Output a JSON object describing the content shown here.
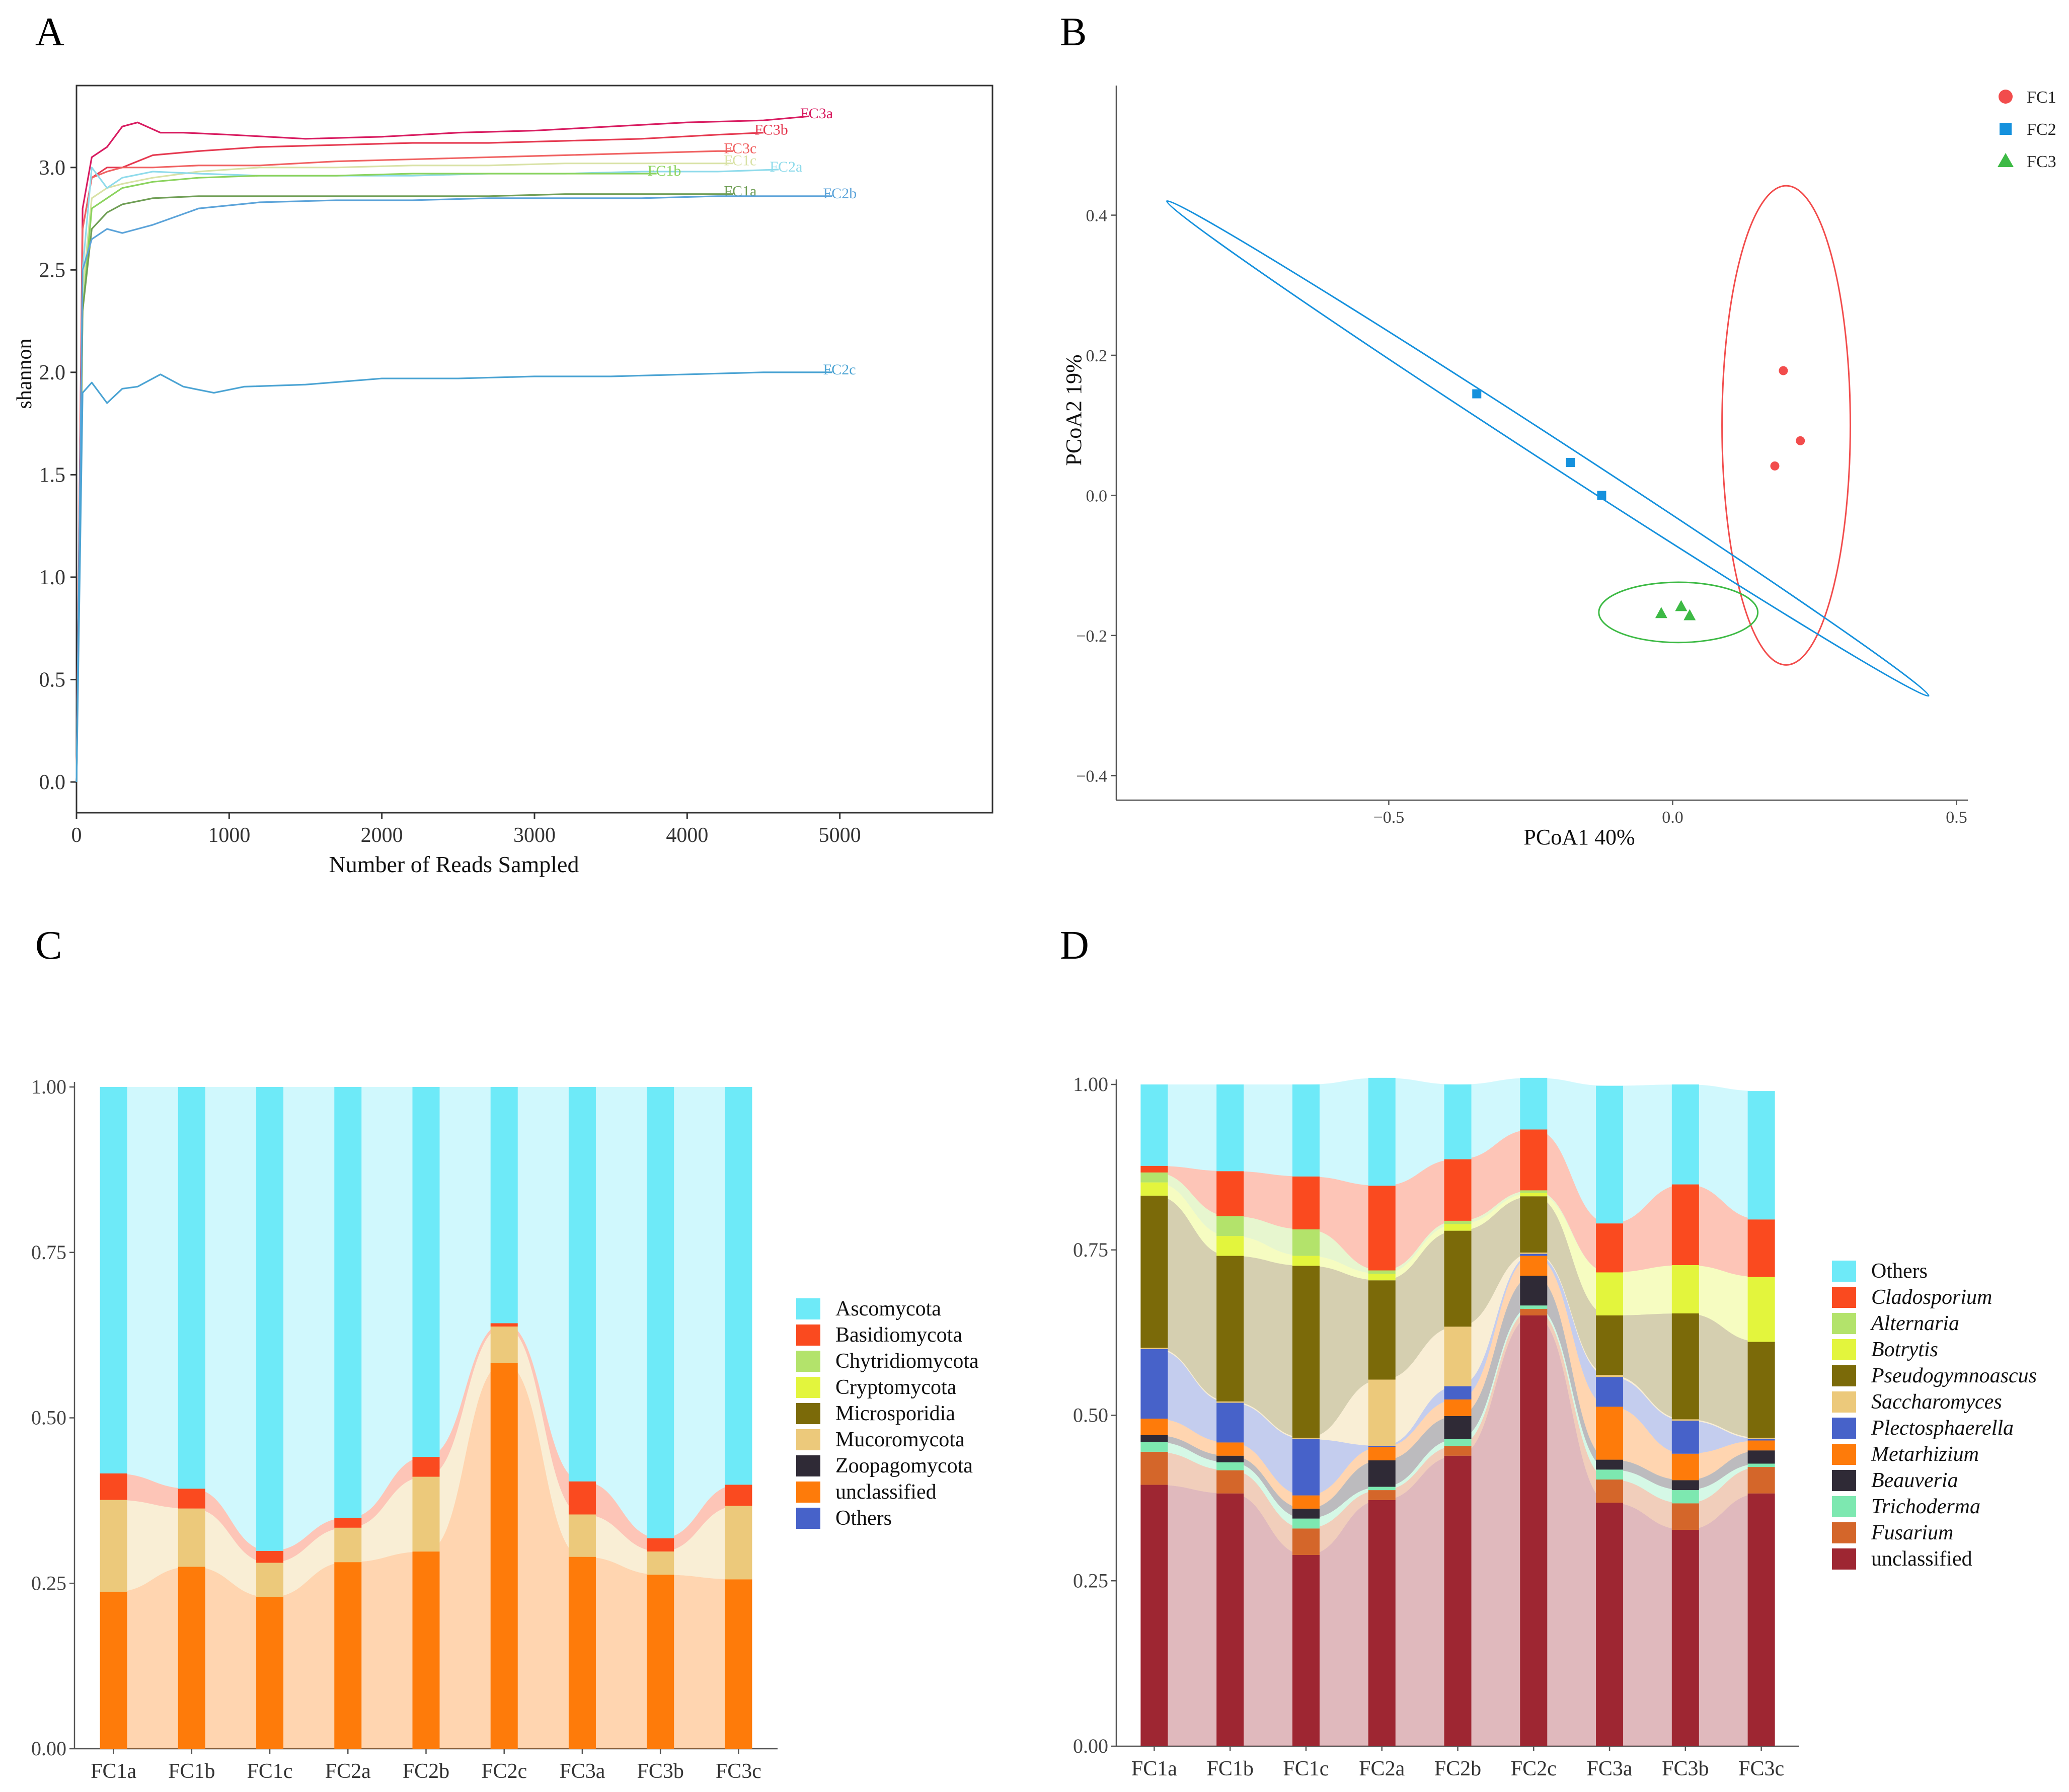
{
  "panel_letters": {
    "a": "A",
    "b": "B",
    "c": "C",
    "d": "D"
  },
  "chart_data": [
    {
      "panel": "A",
      "type": "line",
      "title": "",
      "xlabel": "Number  of  Reads  Sampled",
      "ylabel": "shannon",
      "xlim": [
        0,
        6000
      ],
      "ylim": [
        -0.15,
        3.4
      ],
      "xticks": [
        0,
        1000,
        2000,
        3000,
        4000,
        5000
      ],
      "xtick_labels": [
        "0",
        "1000",
        "2000",
        "3000",
        "4000",
        "5000"
      ],
      "yticks": [
        0.0,
        0.5,
        1.0,
        1.5,
        2.0,
        2.5,
        3.0
      ],
      "ytick_labels": [
        "0.0",
        "0.5",
        "1.0",
        "1.5",
        "2.0",
        "2.5",
        "3.0"
      ],
      "series": [
        {
          "name": "FC3a",
          "color": "#d81b60",
          "x": [
            0,
            40,
            100,
            200,
            300,
            400,
            550,
            700,
            1000,
            1500,
            2000,
            2500,
            3000,
            3500,
            4000,
            4500,
            4800
          ],
          "y": [
            0,
            2.8,
            3.05,
            3.1,
            3.2,
            3.22,
            3.17,
            3.17,
            3.16,
            3.14,
            3.15,
            3.17,
            3.18,
            3.2,
            3.22,
            3.23,
            3.25
          ]
        },
        {
          "name": "FC3b",
          "color": "#e53950",
          "x": [
            0,
            40,
            100,
            200,
            300,
            500,
            800,
            1200,
            1700,
            2200,
            2700,
            3200,
            3700,
            4200,
            4500
          ],
          "y": [
            0,
            2.7,
            2.95,
            3.0,
            3.0,
            3.06,
            3.08,
            3.1,
            3.11,
            3.12,
            3.12,
            3.13,
            3.14,
            3.16,
            3.17
          ]
        },
        {
          "name": "FC3c",
          "color": "#f06161",
          "x": [
            0,
            40,
            100,
            200,
            300,
            500,
            800,
            1200,
            1700,
            2200,
            2700,
            3200,
            3700,
            4200,
            4300
          ],
          "y": [
            0,
            2.7,
            2.95,
            2.98,
            3.0,
            3.0,
            3.01,
            3.01,
            3.03,
            3.04,
            3.05,
            3.06,
            3.07,
            3.08,
            3.08
          ]
        },
        {
          "name": "FC1c",
          "color": "#d9e2a6",
          "x": [
            0,
            40,
            100,
            200,
            300,
            500,
            800,
            1200,
            1700,
            2200,
            2700,
            3200,
            3700,
            4200,
            4300
          ],
          "y": [
            0,
            2.4,
            2.85,
            2.9,
            2.92,
            2.95,
            2.98,
            3.0,
            3.0,
            3.01,
            3.01,
            3.02,
            3.02,
            3.02,
            3.02
          ]
        },
        {
          "name": "FC2a",
          "color": "#8fdbeb",
          "x": [
            0,
            40,
            100,
            200,
            300,
            500,
            800,
            1200,
            1700,
            2200,
            2700,
            3200,
            3700,
            4200,
            4600
          ],
          "y": [
            0,
            2.5,
            3.0,
            2.9,
            2.95,
            2.98,
            2.97,
            2.96,
            2.96,
            2.96,
            2.97,
            2.97,
            2.98,
            2.98,
            2.99
          ]
        },
        {
          "name": "FC1b",
          "color": "#8bd35e",
          "x": [
            0,
            40,
            100,
            200,
            300,
            500,
            800,
            1200,
            1700,
            2200,
            2700,
            3200,
            3700,
            3800
          ],
          "y": [
            0,
            2.3,
            2.8,
            2.85,
            2.9,
            2.93,
            2.95,
            2.96,
            2.96,
            2.97,
            2.97,
            2.97,
            2.97,
            2.97
          ]
        },
        {
          "name": "FC1a",
          "color": "#6f9e55",
          "x": [
            0,
            40,
            100,
            200,
            300,
            500,
            800,
            1200,
            1700,
            2200,
            2700,
            3200,
            3700,
            4200,
            4300
          ],
          "y": [
            0,
            2.3,
            2.7,
            2.78,
            2.82,
            2.85,
            2.86,
            2.86,
            2.86,
            2.86,
            2.86,
            2.87,
            2.87,
            2.87,
            2.87
          ]
        },
        {
          "name": "FC2b",
          "color": "#5ba3d9",
          "x": [
            0,
            40,
            100,
            200,
            300,
            500,
            800,
            1200,
            1700,
            2200,
            2700,
            3200,
            3700,
            4200,
            4700,
            4950
          ],
          "y": [
            0,
            2.5,
            2.65,
            2.7,
            2.68,
            2.72,
            2.8,
            2.83,
            2.84,
            2.84,
            2.85,
            2.85,
            2.85,
            2.86,
            2.86,
            2.86
          ]
        },
        {
          "name": "FC2c",
          "color": "#4aa3d3",
          "x": [
            0,
            40,
            100,
            200,
            300,
            400,
            550,
            700,
            900,
            1100,
            1500,
            2000,
            2500,
            3000,
            3500,
            4000,
            4500,
            4950
          ],
          "y": [
            0,
            1.9,
            1.95,
            1.85,
            1.92,
            1.93,
            1.99,
            1.93,
            1.9,
            1.93,
            1.94,
            1.97,
            1.97,
            1.98,
            1.98,
            1.99,
            2.0,
            2.0
          ]
        }
      ]
    },
    {
      "panel": "B",
      "type": "scatter",
      "title": "",
      "xlabel": "PCoA1  40%",
      "ylabel": "PCoA2  19%",
      "xlim": [
        -0.98,
        0.52
      ],
      "ylim": [
        -0.435,
        0.585
      ],
      "xticks": [
        -0.5,
        0.0,
        0.5
      ],
      "xtick_labels": [
        "−0.5",
        "0.0",
        "0.5"
      ],
      "yticks": [
        -0.4,
        -0.2,
        0.0,
        0.2,
        0.4
      ],
      "ytick_labels": [
        "−0.4",
        "−0.2",
        "0.0",
        "0.2",
        "0.4"
      ],
      "legend": {
        "position": "top-right",
        "entries": [
          "FC1",
          "FC2",
          "FC3"
        ]
      },
      "series": [
        {
          "name": "FC1",
          "color": "#f24c4c",
          "marker": "circle",
          "x": [
            0.195,
            0.225,
            0.18
          ],
          "y": [
            0.178,
            0.078,
            0.042
          ]
        },
        {
          "name": "FC2",
          "color": "#1591dd",
          "marker": "square",
          "x": [
            -0.345,
            -0.18,
            -0.125
          ],
          "y": [
            0.145,
            0.047,
            0.0
          ]
        },
        {
          "name": "FC3",
          "color": "#3dba45",
          "marker": "triangle",
          "x": [
            -0.02,
            0.015,
            0.03
          ],
          "y": [
            -0.168,
            -0.158,
            -0.171
          ]
        }
      ],
      "ellipses": [
        {
          "group": "FC1",
          "color": "#f24c4c",
          "cx": 0.2,
          "cy": 0.1,
          "rx": 0.113,
          "ry": 0.342,
          "angle_deg": 0
        },
        {
          "group": "FC2",
          "color": "#1591dd",
          "cx": -0.22,
          "cy": 0.067,
          "rx": 0.8,
          "ry": 0.018,
          "angle_deg": 33
        },
        {
          "group": "FC3",
          "color": "#3dba45",
          "cx": 0.01,
          "cy": -0.167,
          "rx": 0.14,
          "ry": 0.043,
          "angle_deg": 0
        }
      ]
    },
    {
      "panel": "C",
      "type": "bar",
      "stacked": true,
      "title": "",
      "xlabel": "",
      "ylabel": "",
      "ylim": [
        0,
        1
      ],
      "yticks": [
        0,
        0.25,
        0.5,
        0.75,
        1.0
      ],
      "ytick_labels": [
        "0.00",
        "0.25",
        "0.50",
        "0.75",
        "1.00"
      ],
      "categories": [
        "FC1a",
        "FC1b",
        "FC1c",
        "FC2a",
        "FC2b",
        "FC2c",
        "FC3a",
        "FC3b",
        "FC3c"
      ],
      "legend": {
        "position": "right"
      },
      "series": [
        {
          "name": "Ascomycota",
          "color": "#6eeaf8",
          "values": [
            0.584,
            0.607,
            0.701,
            0.651,
            0.559,
            0.357,
            0.596,
            0.682,
            0.601
          ]
        },
        {
          "name": "Basidiomycota",
          "color": "#fa4a1f",
          "values": [
            0.04,
            0.03,
            0.018,
            0.015,
            0.03,
            0.005,
            0.05,
            0.02,
            0.032
          ]
        },
        {
          "name": "Chytridiomycota",
          "color": "#b3e36b",
          "values": [
            0,
            0,
            0,
            0,
            0,
            0,
            0,
            0,
            0
          ]
        },
        {
          "name": "Cryptomycota",
          "color": "#e3f53d",
          "values": [
            0,
            0,
            0,
            0,
            0,
            0,
            0,
            0,
            0
          ]
        },
        {
          "name": "Microsporidia",
          "color": "#7b6a09",
          "values": [
            0,
            0,
            0,
            0,
            0,
            0,
            0,
            0,
            0
          ]
        },
        {
          "name": "Mucoromycota",
          "color": "#ecc97b",
          "values": [
            0.139,
            0.088,
            0.052,
            0.052,
            0.113,
            0.055,
            0.064,
            0.035,
            0.111
          ]
        },
        {
          "name": "Zoopagomycota",
          "color": "#2f2a36",
          "values": [
            0,
            0,
            0,
            0,
            0,
            0,
            0,
            0,
            0
          ]
        },
        {
          "name": "unclassified",
          "color": "#fe7b0a",
          "values": [
            0.237,
            0.275,
            0.229,
            0.282,
            0.298,
            0.583,
            0.29,
            0.263,
            0.256
          ]
        },
        {
          "name": "Others",
          "color": "#4762c9",
          "values": [
            0,
            0,
            0,
            0,
            0,
            0,
            0,
            0,
            0
          ]
        }
      ]
    },
    {
      "panel": "D",
      "type": "bar",
      "stacked": true,
      "title": "",
      "xlabel": "",
      "ylabel": "",
      "ylim": [
        0,
        1
      ],
      "yticks": [
        0,
        0.25,
        0.5,
        0.75,
        1.0
      ],
      "ytick_labels": [
        "0.00",
        "0.25",
        "0.50",
        "0.75",
        "1.00"
      ],
      "categories": [
        "FC1a",
        "FC1b",
        "FC1c",
        "FC2a",
        "FC2b",
        "FC2c",
        "FC3a",
        "FC3b",
        "FC3c"
      ],
      "legend": {
        "position": "right"
      },
      "series": [
        {
          "name": "Others",
          "italic": false,
          "color": "#6eeaf8",
          "values": [
            0.123,
            0.131,
            0.139,
            0.163,
            0.113,
            0.078,
            0.208,
            0.151,
            0.194
          ]
        },
        {
          "name": "Cladosporium",
          "italic": true,
          "color": "#fa4a1f",
          "values": [
            0.01,
            0.068,
            0.08,
            0.128,
            0.093,
            0.092,
            0.074,
            0.122,
            0.087
          ]
        },
        {
          "name": "Alternaria",
          "italic": true,
          "color": "#b3e36b",
          "values": [
            0.015,
            0.03,
            0.04,
            0.005,
            0.005,
            0.004,
            0,
            0,
            0
          ]
        },
        {
          "name": "Botrytis",
          "italic": true,
          "color": "#e3f53d",
          "values": [
            0.02,
            0.03,
            0.015,
            0.01,
            0.01,
            0.005,
            0.065,
            0.073,
            0.098
          ]
        },
        {
          "name": "Pseudogymnoascus",
          "italic": true,
          "color": "#7b6a09",
          "values": [
            0.23,
            0.22,
            0.26,
            0.15,
            0.145,
            0.085,
            0.09,
            0.16,
            0.145
          ]
        },
        {
          "name": "Saccharomyces",
          "italic": true,
          "color": "#ecc97b",
          "values": [
            0.002,
            0.002,
            0.002,
            0.1,
            0.09,
            0.002,
            0.003,
            0.002,
            0.002
          ]
        },
        {
          "name": "Plectosphaerella",
          "italic": true,
          "color": "#4762c9",
          "values": [
            0.105,
            0.06,
            0.085,
            0.002,
            0.02,
            0.003,
            0.045,
            0.05,
            0.002
          ]
        },
        {
          "name": "Metarhizium",
          "italic": true,
          "color": "#fe7b0a",
          "values": [
            0.025,
            0.02,
            0.02,
            0.02,
            0.025,
            0.03,
            0.08,
            0.04,
            0.015
          ]
        },
        {
          "name": "Beauveria",
          "italic": true,
          "color": "#2f2a36",
          "values": [
            0.01,
            0.01,
            0.015,
            0.04,
            0.035,
            0.045,
            0.015,
            0.015,
            0.02
          ]
        },
        {
          "name": "Trichoderma",
          "italic": true,
          "color": "#7de8b0",
          "values": [
            0.015,
            0.012,
            0.015,
            0.005,
            0.01,
            0.005,
            0.015,
            0.02,
            0.005
          ]
        },
        {
          "name": "Fusarium",
          "italic": true,
          "color": "#d4662a",
          "values": [
            0.05,
            0.035,
            0.04,
            0.015,
            0.015,
            0.01,
            0.035,
            0.04,
            0.04
          ]
        },
        {
          "name": "unclassified",
          "italic": false,
          "color": "#9e2632",
          "values": [
            0.395,
            0.382,
            0.289,
            0.372,
            0.439,
            0.651,
            0.368,
            0.327,
            0.382
          ]
        }
      ]
    }
  ]
}
